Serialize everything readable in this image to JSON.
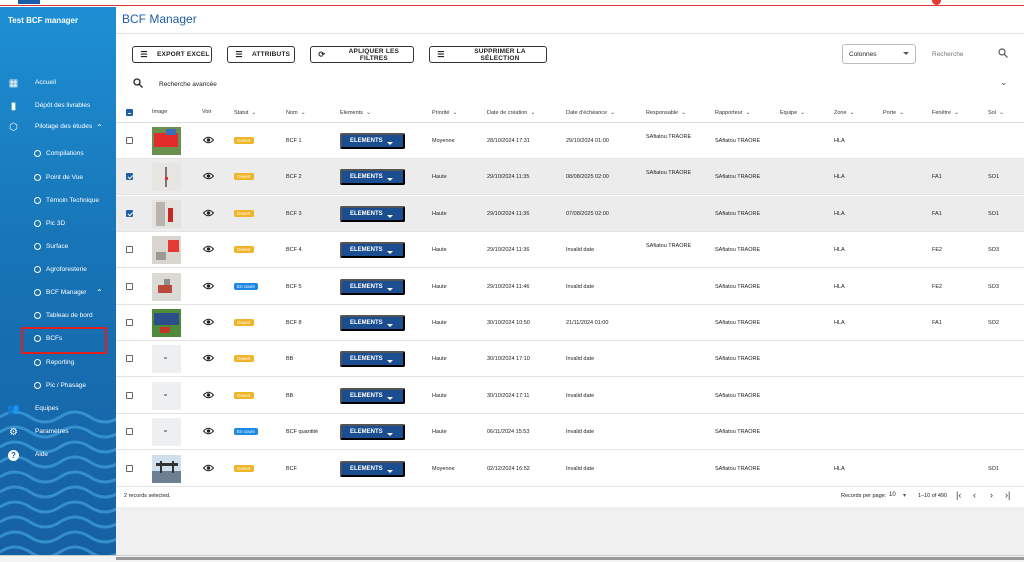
{
  "app": {
    "name": "Test BCF manager",
    "page_title": "BCF Manager"
  },
  "sidebar": {
    "items": [
      {
        "label": "Accueil",
        "icon": "dashboard-icon"
      },
      {
        "label": "Dépôt des livrables",
        "icon": "document-icon"
      },
      {
        "label": "Pilotage des études",
        "icon": "cube-icon",
        "expanded": true
      },
      {
        "label": "Compilations",
        "sub": true
      },
      {
        "label": "Point de Vue",
        "sub": true
      },
      {
        "label": "Témoin Technique",
        "sub": true
      },
      {
        "label": "Pic 3D",
        "sub": true
      },
      {
        "label": "Surface",
        "sub": true
      },
      {
        "label": "Agroforesterie",
        "sub": true
      },
      {
        "label": "BCF Manager",
        "sub": true,
        "expanded": true
      },
      {
        "label": "Tableau de bord",
        "sub": true
      },
      {
        "label": "BCFs",
        "sub": true,
        "active": true
      },
      {
        "label": "Reporting",
        "sub": true
      },
      {
        "label": "Pic / Phasage",
        "sub": true
      },
      {
        "label": "Equipes",
        "icon": "group-icon"
      },
      {
        "label": "Paramètres",
        "icon": "gears-icon"
      },
      {
        "label": "Aide",
        "icon": "help-icon"
      }
    ]
  },
  "toolbar": {
    "export_label": "EXPORT EXCEL",
    "attributes_label": "ATTRIBUTS",
    "apply_filters_label": "APLIQUER LES FILTRES",
    "delete_selection_label": "SUPPRIMER LA SÉLECTION",
    "columns_label": "Colonnes",
    "search_placeholder": "Recherche"
  },
  "advanced_search": {
    "label": "Recherche avancée"
  },
  "table": {
    "headers": {
      "image": "Image",
      "voir": "Voir",
      "statut": "Statut",
      "nom": "Nom",
      "elements": "Elements",
      "priorite": "Priorité",
      "creation": "Date de création",
      "echeance": "Date d'échéance",
      "responsable": "Responsable",
      "rapporteur": "Rapporteur",
      "equipe": "Equipe",
      "zone": "Zone",
      "porte": "Porte",
      "fenetre": "Fenêtre",
      "sol": "Sol"
    },
    "elements_button": "ELEMENTS",
    "rows": [
      {
        "checked": false,
        "status": "Ouvert",
        "status_type": "ouvert",
        "name": "BCF 1",
        "priority": "Moyenne",
        "created": "28/10/2024 17:31",
        "due": "29/10/2024 01:00",
        "responsable": "SAfiatou TRAORE",
        "rapporteur": "SAfiatou TRAORE",
        "zone": "HLA",
        "fenetre": "",
        "sol": "",
        "thumb": "red-roof"
      },
      {
        "checked": true,
        "status": "Ouvert",
        "status_type": "ouvert",
        "name": "BCF 2",
        "priority": "Haute",
        "created": "29/10/2024 11:35",
        "due": "08/08/2025 02:00",
        "responsable": "SAfiatou TRAORE",
        "rapporteur": "SAfiatou TRAORE",
        "zone": "HLA",
        "fenetre": "FA1",
        "sol": "SO1",
        "thumb": "pole"
      },
      {
        "checked": true,
        "status": "Ouvert",
        "status_type": "ouvert",
        "name": "BCF 3",
        "priority": "Haute",
        "created": "29/10/2024 11:36",
        "due": "07/08/2025 02:00",
        "responsable": "",
        "rapporteur": "SAfiatou TRAORE",
        "zone": "HLA",
        "fenetre": "FA1",
        "sol": "SO1",
        "thumb": "wall"
      },
      {
        "checked": false,
        "status": "Ouvert",
        "status_type": "ouvert",
        "name": "BCF 4",
        "priority": "Haute",
        "created": "29/10/2024 11:36",
        "due": "Invalid date",
        "responsable": "SAfiatou TRAORE",
        "rapporteur": "SAfiatou TRAORE",
        "zone": "HLA",
        "fenetre": "FE2",
        "sol": "SO3",
        "thumb": "red-block"
      },
      {
        "checked": false,
        "status": "En cours",
        "status_type": "encours",
        "name": "BCF 5",
        "priority": "Haute",
        "created": "29/10/2024 11:46",
        "due": "Invalid date",
        "responsable": "",
        "rapporteur": "SAfiatou TRAORE",
        "zone": "HLA",
        "fenetre": "FE2",
        "sol": "SO3",
        "thumb": "small-obj"
      },
      {
        "checked": false,
        "status": "Ouvert",
        "status_type": "ouvert",
        "name": "BCF 8",
        "priority": "Haute",
        "created": "30/10/2024 10:50",
        "due": "21/11/2024 01:00",
        "responsable": "",
        "rapporteur": "SAfiatou TRAORE",
        "zone": "HLA",
        "fenetre": "FA1",
        "sol": "SO2",
        "thumb": "solar"
      },
      {
        "checked": false,
        "status": "Ouvert",
        "status_type": "ouvert",
        "name": "BB",
        "priority": "Haute",
        "created": "30/10/2024 17:10",
        "due": "Invalid date",
        "responsable": "",
        "rapporteur": "SAfiatou TRAORE",
        "zone": "",
        "fenetre": "",
        "sol": "",
        "thumb": "empty"
      },
      {
        "checked": false,
        "status": "Ouvert",
        "status_type": "ouvert",
        "name": "BB",
        "priority": "Haute",
        "created": "30/10/2024 17:11",
        "due": "Invalid date",
        "responsable": "",
        "rapporteur": "SAfiatou TRAORE",
        "zone": "",
        "fenetre": "",
        "sol": "",
        "thumb": "empty"
      },
      {
        "checked": false,
        "status": "En cours",
        "status_type": "encours",
        "name": "BCF quantité",
        "priority": "Haute",
        "created": "06/11/2024 15:53",
        "due": "Invalid date",
        "responsable": "",
        "rapporteur": "SAfiatou TRAORE",
        "zone": "",
        "fenetre": "",
        "sol": "",
        "thumb": "empty"
      },
      {
        "checked": false,
        "status": "Ouvert",
        "status_type": "ouvert",
        "name": "BCF",
        "priority": "Moyenne",
        "created": "02/12/2024 16:52",
        "due": "Invalid date",
        "responsable": "",
        "rapporteur": "SAfiatou TRAORE",
        "zone": "HLA",
        "fenetre": "",
        "sol": "SO1",
        "thumb": "structure"
      }
    ]
  },
  "footer": {
    "selected_text": "2 records selected.",
    "rows_per_page_label": "Records per page:",
    "rows_per_page_value": "10",
    "range_text": "1–10 of 490"
  },
  "colors": {
    "primary": "#1a4e91",
    "sidebar": "#1774b6",
    "ouvert": "#f0b429",
    "en_cours": "#1e88e5",
    "highlight": "#e02020"
  }
}
